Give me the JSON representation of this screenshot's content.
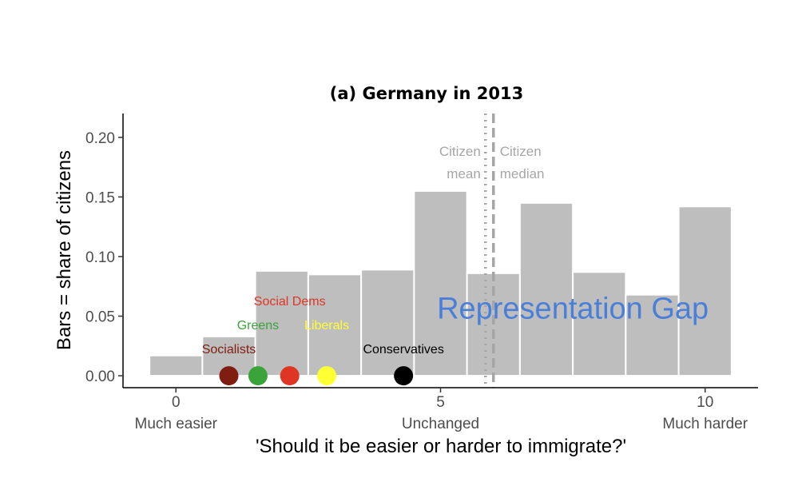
{
  "chart_data": {
    "type": "bar",
    "title": "(a) Germany in 2013",
    "xlabel": "'Should it be easier or harder to immigrate?'",
    "ylabel": "Bars = share of citizens",
    "xlim": [
      -1,
      11
    ],
    "ylim": [
      -0.01,
      0.22
    ],
    "x_ticks": [
      {
        "value": 0,
        "label": "0",
        "sublabel": "Much easier"
      },
      {
        "value": 5,
        "label": "5",
        "sublabel": "Unchanged"
      },
      {
        "value": 10,
        "label": "10",
        "sublabel": "Much harder"
      }
    ],
    "y_ticks": [
      {
        "value": 0.0,
        "label": "0.00"
      },
      {
        "value": 0.05,
        "label": "0.05"
      },
      {
        "value": 0.1,
        "label": "0.10"
      },
      {
        "value": 0.15,
        "label": "0.15"
      },
      {
        "value": 0.2,
        "label": "0.20"
      }
    ],
    "bars": [
      {
        "x": 0,
        "value": 0.017
      },
      {
        "x": 1,
        "value": 0.033
      },
      {
        "x": 2,
        "value": 0.088
      },
      {
        "x": 3,
        "value": 0.085
      },
      {
        "x": 4,
        "value": 0.089
      },
      {
        "x": 5,
        "value": 0.155
      },
      {
        "x": 6,
        "value": 0.086
      },
      {
        "x": 7,
        "value": 0.145
      },
      {
        "x": 8,
        "value": 0.087
      },
      {
        "x": 9,
        "value": 0.068
      },
      {
        "x": 10,
        "value": 0.142
      }
    ],
    "bar_color": "#bebebe",
    "reference_lines": [
      {
        "label_line1": "Citizen",
        "label_line2": "mean",
        "x": 5.85,
        "style": "dotted",
        "label_side": "left"
      },
      {
        "label_line1": "Citizen",
        "label_line2": "median",
        "x": 6.0,
        "style": "dashed",
        "label_side": "right"
      }
    ],
    "reference_color": "#a6a6a6",
    "parties": [
      {
        "name": "Socialists",
        "x": 1.0,
        "color": "#7f1d10",
        "label_x": 1.0,
        "label_y": 0.019
      },
      {
        "name": "Greens",
        "x": 1.55,
        "color": "#3aa33a",
        "label_x": 1.55,
        "label_y": 0.039
      },
      {
        "name": "Social Dems",
        "x": 2.15,
        "color": "#de3524",
        "label_x": 2.15,
        "label_y": 0.059
      },
      {
        "name": "Liberals",
        "x": 2.85,
        "color": "#ffff33",
        "label_x": 2.85,
        "label_y": 0.039
      },
      {
        "name": "Conservatives",
        "x": 4.3,
        "color": "#000000",
        "label_x": 4.3,
        "label_y": 0.019
      }
    ],
    "annotation": {
      "text": "Representation Gap",
      "x": 7.5,
      "y": 0.048,
      "color": "#4a7fd9"
    },
    "grid": false
  }
}
